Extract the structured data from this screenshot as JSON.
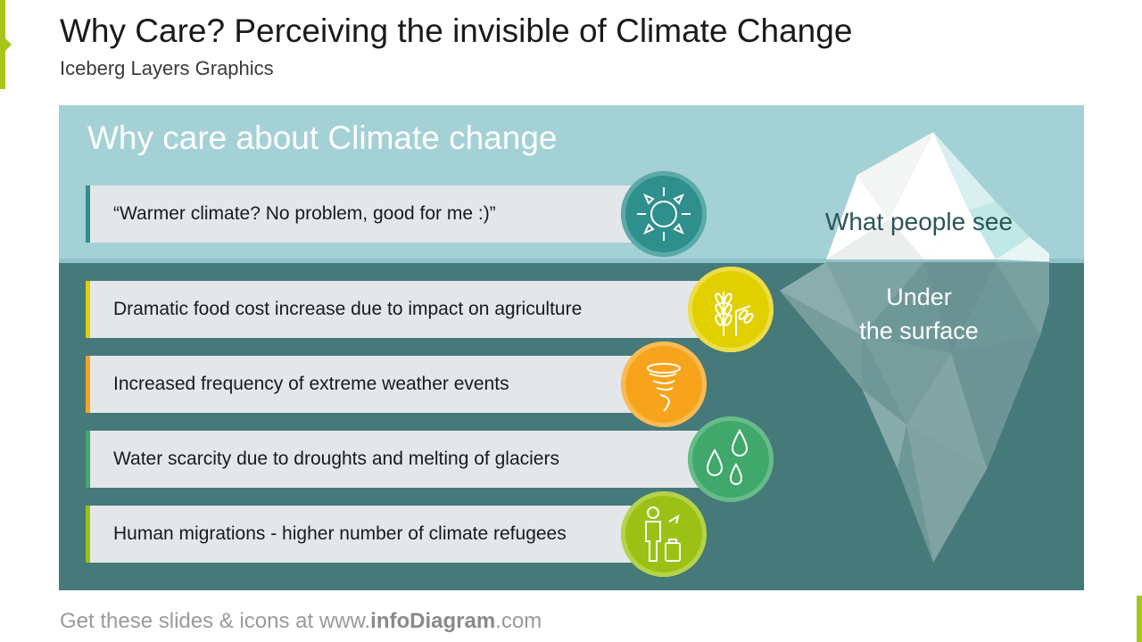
{
  "slide": {
    "title": "Why Care? Perceiving the invisible of Climate Change",
    "subtitle": "Iceberg Layers Graphics"
  },
  "panel": {
    "heading": "Why care about Climate change",
    "iceberg": {
      "above_label": "What people see",
      "below_label_line1": "Under",
      "below_label_line2": "the surface"
    },
    "items": [
      {
        "text": "“Warmer climate? No problem, good for me :)”",
        "icon": "sun-icon",
        "color": "#2e8f8c"
      },
      {
        "text": "Dramatic food cost increase due to impact on agriculture",
        "icon": "wheat-icon",
        "color": "#e1cf00"
      },
      {
        "text": "Increased frequency of extreme weather events",
        "icon": "tornado-icon",
        "color": "#f7a41c"
      },
      {
        "text": "Water scarcity due to droughts and melting of glaciers",
        "icon": "water-drops-icon",
        "color": "#3fa86a"
      },
      {
        "text": "Human migrations - higher number of climate refugees",
        "icon": "refugee-icon",
        "color": "#9cc115"
      }
    ]
  },
  "footer": {
    "prefix": "Get these slides & icons at www.",
    "brand": "infoDiagram",
    "suffix": ".com"
  }
}
